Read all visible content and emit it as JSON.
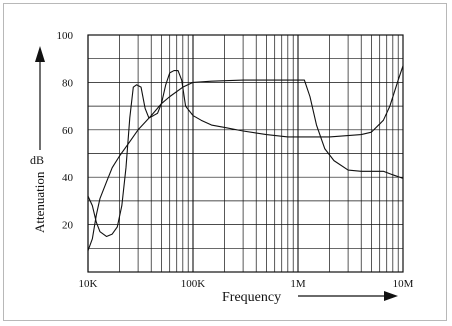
{
  "chart_data": {
    "type": "line",
    "xlabel": "Frequency",
    "ylabel": "Attenuation",
    "yunit": "dB",
    "x_scale": "log",
    "xlim": [
      10000,
      10000000
    ],
    "ylim": [
      0,
      100
    ],
    "grid": true,
    "x_ticks": [
      {
        "value": 10000,
        "label": "10K"
      },
      {
        "value": 100000,
        "label": "100K"
      },
      {
        "value": 1000000,
        "label": "1M"
      },
      {
        "value": 10000000,
        "label": "10M"
      }
    ],
    "y_ticks": [
      {
        "value": 20,
        "label": "20"
      },
      {
        "value": 40,
        "label": "40"
      },
      {
        "value": 60,
        "label": "60"
      },
      {
        "value": 80,
        "label": "80"
      },
      {
        "value": 100,
        "label": "100"
      }
    ],
    "series": [
      {
        "points": [
          [
            10000,
            9
          ],
          [
            11000,
            14
          ],
          [
            12000,
            24
          ],
          [
            13000,
            31
          ],
          [
            15000,
            38
          ],
          [
            17000,
            44
          ],
          [
            20000,
            49
          ],
          [
            25000,
            55
          ],
          [
            30000,
            60
          ],
          [
            40000,
            66
          ],
          [
            50000,
            71
          ],
          [
            60000,
            74
          ],
          [
            80000,
            78
          ],
          [
            100000,
            80
          ],
          [
            150000,
            80.5
          ],
          [
            300000,
            81
          ],
          [
            600000,
            81
          ],
          [
            1000000,
            81
          ],
          [
            1150000,
            81
          ],
          [
            1300000,
            74
          ],
          [
            1500000,
            62
          ],
          [
            1800000,
            52
          ],
          [
            2200000,
            47
          ],
          [
            3000000,
            43
          ],
          [
            4000000,
            42.5
          ],
          [
            5000000,
            42.5
          ],
          [
            6500000,
            42.5
          ],
          [
            8000000,
            41
          ],
          [
            10000000,
            39.5
          ]
        ]
      },
      {
        "points": [
          [
            10000,
            32
          ],
          [
            11000,
            28
          ],
          [
            12000,
            21
          ],
          [
            13000,
            17
          ],
          [
            15000,
            15
          ],
          [
            17000,
            16
          ],
          [
            19000,
            19
          ],
          [
            21000,
            28
          ],
          [
            23000,
            44
          ],
          [
            25000,
            65
          ],
          [
            27000,
            78
          ],
          [
            29000,
            79
          ],
          [
            32000,
            78
          ],
          [
            35000,
            69
          ],
          [
            38000,
            65
          ],
          [
            42000,
            66
          ],
          [
            46000,
            67
          ],
          [
            50000,
            71
          ],
          [
            55000,
            79
          ],
          [
            60000,
            84
          ],
          [
            66000,
            85
          ],
          [
            72000,
            85
          ],
          [
            78000,
            81
          ],
          [
            85000,
            70
          ],
          [
            100000,
            66
          ],
          [
            120000,
            64
          ],
          [
            150000,
            62
          ],
          [
            200000,
            61
          ],
          [
            300000,
            59.5
          ],
          [
            500000,
            58
          ],
          [
            800000,
            57
          ],
          [
            1000000,
            57
          ],
          [
            2000000,
            57
          ],
          [
            4000000,
            58
          ],
          [
            5000000,
            59
          ],
          [
            6500000,
            64
          ],
          [
            7500000,
            70
          ],
          [
            9000000,
            81
          ],
          [
            10000000,
            87
          ]
        ]
      }
    ]
  }
}
